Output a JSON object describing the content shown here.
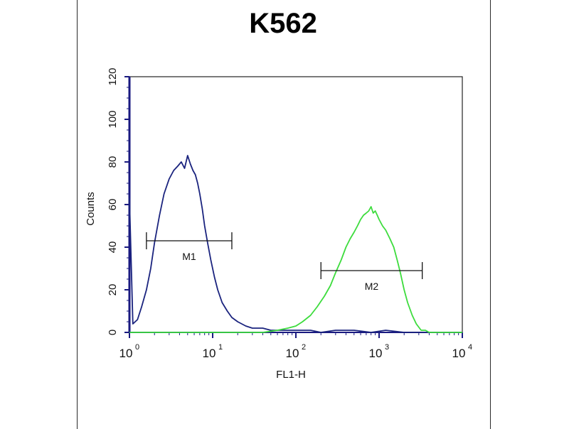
{
  "chart_data": {
    "type": "histogram",
    "title": "K562",
    "xlabel": "FL1-H",
    "ylabel": "Counts",
    "x_scale": "log",
    "xlim": [
      1,
      10000
    ],
    "ylim": [
      0,
      120
    ],
    "x_ticks": [
      {
        "base": "10",
        "exp": "0",
        "value": 1
      },
      {
        "base": "10",
        "exp": "1",
        "value": 10
      },
      {
        "base": "10",
        "exp": "2",
        "value": 100
      },
      {
        "base": "10",
        "exp": "3",
        "value": 1000
      },
      {
        "base": "10",
        "exp": "4",
        "value": 10000
      }
    ],
    "y_ticks": [
      "0",
      "20",
      "40",
      "60",
      "80",
      "100",
      "120"
    ],
    "y_tick_values": [
      0,
      20,
      40,
      60,
      80,
      100,
      120
    ],
    "series": [
      {
        "color": "#1a237e",
        "x": [
          1.0,
          1.1,
          1.25,
          1.4,
          1.6,
          1.8,
          2.0,
          2.3,
          2.6,
          3.0,
          3.4,
          3.8,
          4.2,
          4.6,
          5.0,
          5.4,
          5.8,
          6.2,
          6.6,
          7.0,
          7.5,
          8.0,
          8.7,
          9.5,
          10.5,
          11.5,
          13,
          15,
          17,
          20,
          25,
          30,
          40,
          50,
          60,
          80,
          100,
          150,
          200,
          300,
          500,
          800,
          1200,
          2000,
          5000,
          10000
        ],
        "y": [
          63,
          4,
          6,
          12,
          20,
          30,
          42,
          55,
          65,
          72,
          76,
          78,
          80,
          77,
          83,
          79,
          76,
          74,
          70,
          65,
          58,
          50,
          42,
          34,
          26,
          20,
          14,
          10,
          7,
          5,
          3,
          2,
          2,
          1,
          1,
          1,
          1,
          1,
          0,
          1,
          1,
          0,
          1,
          0,
          0,
          0
        ]
      },
      {
        "color": "#3ddc3d",
        "x": [
          1,
          10,
          40,
          60,
          80,
          100,
          120,
          150,
          180,
          220,
          260,
          300,
          350,
          400,
          450,
          500,
          550,
          600,
          650,
          700,
          750,
          800,
          850,
          900,
          950,
          1000,
          1100,
          1200,
          1350,
          1500,
          1650,
          1800,
          2000,
          2200,
          2500,
          2800,
          3200,
          3600,
          4000,
          5000,
          7000,
          10000
        ],
        "y": [
          0,
          0,
          0,
          1,
          2,
          3,
          5,
          8,
          12,
          17,
          22,
          28,
          34,
          40,
          44,
          47,
          50,
          53,
          55,
          56,
          57,
          59,
          56,
          57,
          55,
          53,
          50,
          48,
          44,
          40,
          34,
          28,
          20,
          14,
          8,
          4,
          1,
          1,
          0,
          0,
          0,
          0
        ]
      }
    ],
    "markers": [
      {
        "label": "M1",
        "x_start": 1.6,
        "x_end": 17,
        "y": 43
      },
      {
        "label": "M2",
        "x_start": 200,
        "x_end": 3300,
        "y": 29
      }
    ]
  },
  "colors": {
    "axis": "#1a1a80",
    "marker": "#111111",
    "frame": "#2a2a2a"
  }
}
